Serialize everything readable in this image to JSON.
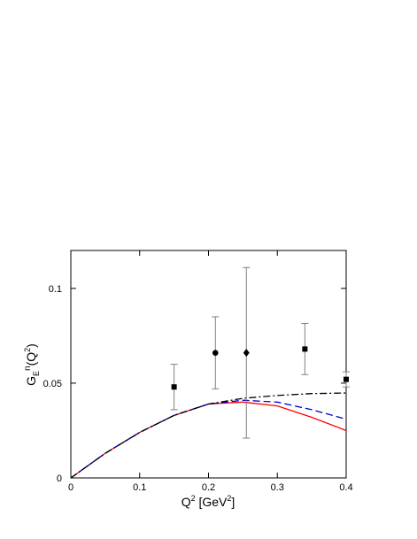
{
  "chart_data": {
    "type": "line",
    "xlabel_parts": [
      "Q",
      "2",
      " [GeV",
      "2",
      "]"
    ],
    "ylabel_parts": [
      "G",
      "E",
      "n",
      "(Q",
      "2",
      ")"
    ],
    "xlim": [
      0,
      0.4
    ],
    "ylim": [
      0,
      0.12
    ],
    "xticks": [
      0,
      0.1,
      0.2,
      0.3,
      0.4
    ],
    "yticks": [
      0,
      0.05,
      0.1
    ],
    "x": [
      0,
      0.05,
      0.1,
      0.15,
      0.2,
      0.25,
      0.3,
      0.35,
      0.4
    ],
    "series": [
      {
        "color": "#ff0000",
        "dash": "solid",
        "values": [
          0,
          0.013,
          0.024,
          0.033,
          0.039,
          0.04,
          0.038,
          0.032,
          0.025
        ]
      },
      {
        "color": "#0000cc",
        "dash": "dashed",
        "values": [
          0,
          0.013,
          0.024,
          0.033,
          0.039,
          0.041,
          0.04,
          0.036,
          0.031
        ]
      },
      {
        "color": "#000000",
        "dash": "dashdot",
        "values": [
          0,
          0.013,
          0.024,
          0.033,
          0.039,
          0.042,
          0.0435,
          0.0445,
          0.0448
        ]
      }
    ],
    "points": {
      "x": [
        0.15,
        0.21,
        0.255,
        0.34,
        0.4
      ],
      "values": [
        0.048,
        0.066,
        0.066,
        0.068,
        0.052
      ],
      "errors": [
        0.012,
        0.019,
        0.045,
        0.0135,
        0.004
      ],
      "markers": [
        "square",
        "circle",
        "diamond",
        "square",
        "square"
      ],
      "color": "#000000",
      "error_color": "#808080"
    }
  }
}
